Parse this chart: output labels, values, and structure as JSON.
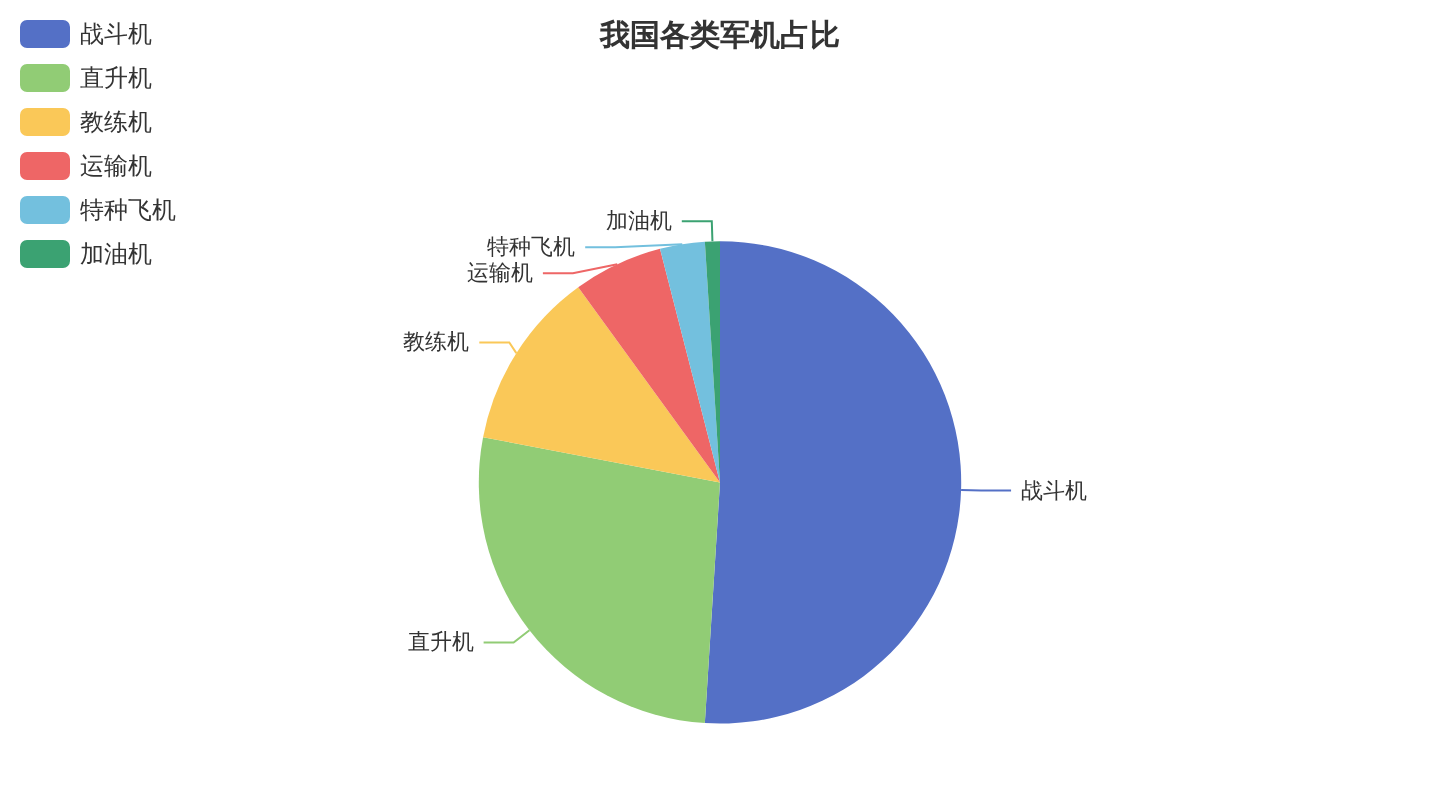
{
  "chart_data": {
    "type": "pie",
    "title": "我国各类军机占比",
    "categories": [
      "战斗机",
      "直升机",
      "教练机",
      "运输机",
      "特种飞机",
      "加油机"
    ],
    "values": [
      51,
      27,
      12,
      6,
      3,
      1
    ],
    "colors": [
      "#5470c6",
      "#91cc75",
      "#fac858",
      "#ee6666",
      "#73c0de",
      "#3ba272"
    ],
    "legend": "top left"
  }
}
